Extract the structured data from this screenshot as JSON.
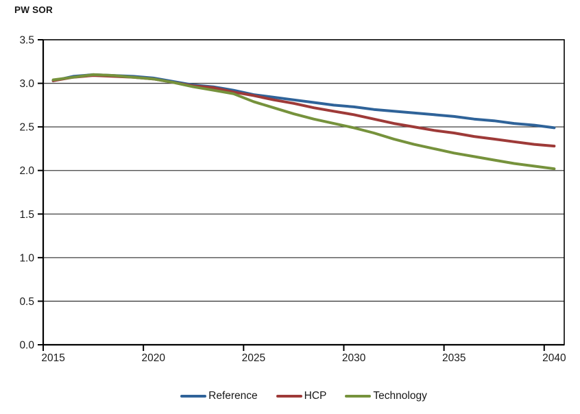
{
  "title": "PW SOR",
  "chart_data": {
    "type": "line",
    "title": "PW SOR",
    "xlabel": "",
    "ylabel": "PW SOR",
    "x": [
      2015,
      2016,
      2017,
      2018,
      2019,
      2020,
      2021,
      2022,
      2023,
      2024,
      2025,
      2026,
      2027,
      2028,
      2029,
      2030,
      2031,
      2032,
      2033,
      2034,
      2035,
      2036,
      2037,
      2038,
      2039,
      2040
    ],
    "x_tick_labels": [
      "2015",
      "2020",
      "2025",
      "2030",
      "2035",
      "2040"
    ],
    "x_tick_indices": [
      0,
      5,
      10,
      15,
      20,
      25
    ],
    "y_tick_labels": [
      "0.0",
      "0.5",
      "1.0",
      "1.5",
      "2.0",
      "2.5",
      "3.0",
      "3.5"
    ],
    "y_tick_values": [
      0,
      0.5,
      1,
      1.5,
      2,
      2.5,
      3,
      3.5
    ],
    "ylim": [
      0,
      3.5
    ],
    "grid": "horizontal",
    "grid_color": "#3F3F3F",
    "axis_color": "#000000",
    "legend_position": "bottom",
    "series": [
      {
        "name": "Reference",
        "color": "#2F6399",
        "values": [
          3.03,
          3.08,
          3.1,
          3.09,
          3.08,
          3.06,
          3.02,
          2.98,
          2.96,
          2.92,
          2.87,
          2.84,
          2.81,
          2.78,
          2.75,
          2.73,
          2.7,
          2.68,
          2.66,
          2.64,
          2.62,
          2.59,
          2.57,
          2.54,
          2.52,
          2.49
        ]
      },
      {
        "name": "HCP",
        "color": "#9E3A38",
        "values": [
          3.03,
          3.07,
          3.09,
          3.08,
          3.07,
          3.05,
          3.01,
          2.97,
          2.95,
          2.9,
          2.86,
          2.81,
          2.77,
          2.72,
          2.68,
          2.64,
          2.59,
          2.54,
          2.5,
          2.46,
          2.43,
          2.39,
          2.36,
          2.33,
          2.3,
          2.28
        ]
      },
      {
        "name": "Technology",
        "color": "#76923C",
        "values": [
          3.04,
          3.07,
          3.1,
          3.09,
          3.07,
          3.05,
          3.01,
          2.96,
          2.92,
          2.88,
          2.79,
          2.72,
          2.65,
          2.59,
          2.54,
          2.49,
          2.43,
          2.36,
          2.3,
          2.25,
          2.2,
          2.16,
          2.12,
          2.08,
          2.05,
          2.02
        ]
      }
    ]
  }
}
